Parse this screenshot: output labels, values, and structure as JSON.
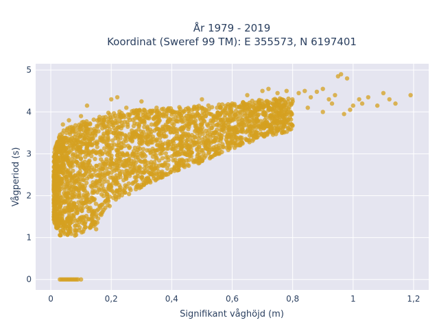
{
  "chart_data": {
    "type": "scatter",
    "title_line1": "År 1979 - 2019",
    "title_line2": "Koordinat (Sweref 99 TM): E 355573, N 6197401",
    "xlabel": "Signifikant våghöjd (m)",
    "ylabel": "Vågperiod (s)",
    "xlim": [
      -0.05,
      1.25
    ],
    "ylim": [
      -0.25,
      5.15
    ],
    "x_ticks": [
      0,
      0.2,
      0.4,
      0.6,
      0.8,
      1,
      1.2
    ],
    "x_tick_labels": [
      "0",
      "0,2",
      "0,4",
      "0,6",
      "0,8",
      "1",
      "1,2"
    ],
    "y_ticks": [
      0,
      1,
      2,
      3,
      4,
      5
    ],
    "y_tick_labels": [
      "0",
      "1",
      "2",
      "3",
      "4",
      "5"
    ],
    "grid": true,
    "marker_color": "#D4A020",
    "plot_background": "#E5E5F0",
    "envelope": {
      "x": [
        0.01,
        0.02,
        0.03,
        0.05,
        0.08,
        0.1,
        0.15,
        0.2,
        0.3,
        0.4,
        0.5,
        0.6,
        0.7,
        0.8
      ],
      "ymin": [
        1.4,
        1.2,
        1.05,
        1.05,
        1.05,
        1.1,
        1.3,
        1.8,
        2.2,
        2.55,
        2.8,
        3.1,
        3.4,
        3.55
      ],
      "ymax": [
        3.0,
        3.3,
        3.5,
        3.6,
        3.7,
        3.75,
        3.9,
        4.0,
        4.05,
        4.1,
        4.15,
        4.2,
        4.3,
        4.35
      ]
    },
    "zero_points_x": [
      0.03,
      0.035,
      0.04,
      0.045,
      0.05,
      0.055,
      0.06,
      0.065,
      0.07,
      0.075,
      0.08,
      0.085,
      0.09,
      0.1
    ],
    "outliers": [
      [
        0.82,
        4.45
      ],
      [
        0.84,
        4.5
      ],
      [
        0.86,
        4.35
      ],
      [
        0.88,
        4.48
      ],
      [
        0.9,
        4.55
      ],
      [
        0.92,
        4.3
      ],
      [
        0.94,
        4.4
      ],
      [
        0.96,
        4.9
      ],
      [
        0.98,
        4.8
      ],
      [
        0.95,
        4.85
      ],
      [
        1.0,
        4.15
      ],
      [
        1.02,
        4.3
      ],
      [
        1.05,
        4.35
      ],
      [
        1.08,
        4.15
      ],
      [
        1.1,
        4.45
      ],
      [
        1.12,
        4.3
      ],
      [
        1.14,
        4.2
      ],
      [
        1.19,
        4.4
      ],
      [
        0.85,
        4.1
      ],
      [
        0.9,
        4.0
      ],
      [
        0.93,
        4.2
      ],
      [
        0.97,
        3.95
      ],
      [
        0.99,
        4.05
      ],
      [
        1.03,
        4.2
      ],
      [
        0.7,
        4.5
      ],
      [
        0.72,
        4.55
      ],
      [
        0.75,
        4.45
      ],
      [
        0.78,
        4.5
      ],
      [
        0.8,
        4.25
      ],
      [
        0.5,
        4.3
      ],
      [
        0.55,
        4.1
      ],
      [
        0.6,
        4.2
      ],
      [
        0.65,
        4.4
      ],
      [
        0.25,
        4.1
      ],
      [
        0.22,
        4.35
      ],
      [
        0.2,
        4.3
      ],
      [
        0.3,
        4.25
      ],
      [
        0.35,
        4.1
      ],
      [
        0.12,
        4.15
      ],
      [
        0.1,
        3.9
      ],
      [
        0.06,
        3.8
      ],
      [
        0.04,
        3.7
      ],
      [
        0.02,
        2.45
      ],
      [
        0.15,
        1.2
      ],
      [
        0.13,
        1.25
      ],
      [
        0.11,
        1.2
      ],
      [
        0.08,
        1.05
      ]
    ]
  }
}
